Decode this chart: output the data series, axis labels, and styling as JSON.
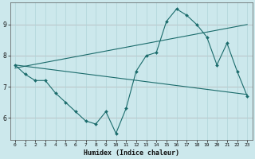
{
  "xlabel": "Humidex (Indice chaleur)",
  "background_color": "#cce8ec",
  "grid_color": "#b0d4d8",
  "line_color": "#1a6b6b",
  "xlim": [
    -0.5,
    23.5
  ],
  "ylim": [
    5.3,
    9.7
  ],
  "yticks": [
    6,
    7,
    8,
    9
  ],
  "xticks": [
    0,
    1,
    2,
    3,
    4,
    5,
    6,
    7,
    8,
    9,
    10,
    11,
    12,
    13,
    14,
    15,
    16,
    17,
    18,
    19,
    20,
    21,
    22,
    23
  ],
  "series_x": [
    0,
    1,
    2,
    3,
    4,
    5,
    6,
    7,
    8,
    9,
    10,
    11,
    12,
    13,
    14,
    15,
    16,
    17,
    18,
    19,
    20,
    21,
    22,
    23
  ],
  "series_y": [
    7.7,
    7.4,
    7.2,
    7.2,
    6.8,
    6.5,
    6.2,
    5.9,
    5.8,
    6.2,
    5.5,
    6.3,
    7.5,
    8.0,
    8.1,
    9.1,
    9.5,
    9.3,
    9.0,
    8.6,
    7.7,
    8.4,
    7.5,
    6.7
  ],
  "trend1_x": [
    0,
    23
  ],
  "trend1_y": [
    7.6,
    9.0
  ],
  "trend2_x": [
    0,
    23
  ],
  "trend2_y": [
    7.7,
    6.75
  ]
}
